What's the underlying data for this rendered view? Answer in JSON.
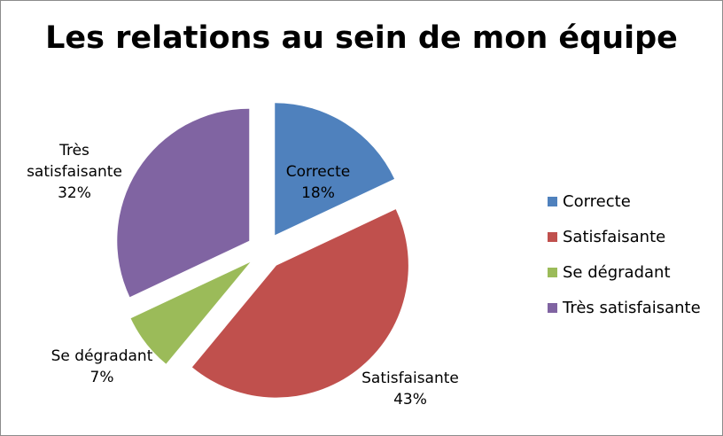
{
  "chart_data": {
    "type": "pie",
    "title": "Les relations au sein de mon équipe",
    "categories": [
      "Correcte",
      "Satisfaisante",
      "Se dégradant",
      "Très satisfaisante"
    ],
    "values": [
      18,
      43,
      7,
      32
    ],
    "data_labels": [
      [
        "Correcte",
        "18%"
      ],
      [
        "Satisfaisante",
        "43%"
      ],
      [
        "Se dégradant",
        "7%"
      ],
      [
        "Très",
        "satisfaisante",
        "32%"
      ]
    ],
    "colors": [
      "#4F81BD",
      "#C0504D",
      "#9BBB59",
      "#8064A2"
    ],
    "exploded": true,
    "legend_position": "right"
  }
}
